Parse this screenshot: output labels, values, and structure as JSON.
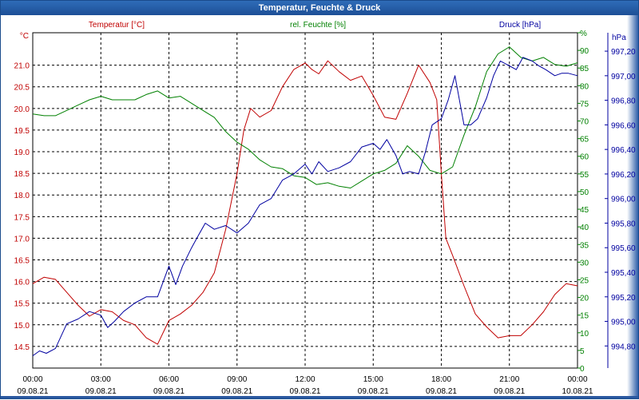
{
  "window": {
    "title": "Temperatur, Feuchte & Druck"
  },
  "chart_data": {
    "type": "line",
    "colors": {
      "temperature": "#c00000",
      "humidity": "#008000",
      "pressure": "#0000a0",
      "grid": "#000000"
    },
    "grid": true,
    "x": {
      "range": [
        0,
        24
      ],
      "ticks": [
        0,
        3,
        6,
        9,
        12,
        15,
        18,
        21,
        24
      ],
      "tick_labels_time": [
        "00:00",
        "03:00",
        "06:00",
        "09:00",
        "12:00",
        "15:00",
        "18:00",
        "21:00",
        "00:00"
      ],
      "tick_labels_date": [
        "09.08.21",
        "09.08.21",
        "09.08.21",
        "09.08.21",
        "09.08.21",
        "09.08.21",
        "09.08.21",
        "09.08.21",
        "10.08.21"
      ]
    },
    "axes": {
      "temperature": {
        "label": "Temperatur [°C]",
        "unit": "°C",
        "ylim": [
          14.0,
          21.75
        ],
        "ticks": [
          "14.5",
          "15.0",
          "15.5",
          "16.0",
          "16.5",
          "17.0",
          "17.5",
          "18.0",
          "18.5",
          "19.0",
          "19.5",
          "20.0",
          "20.5",
          "21.0"
        ]
      },
      "humidity": {
        "label": "rel. Feuchte [%]",
        "unit": "%",
        "ylim": [
          0,
          95
        ],
        "ticks": [
          "0",
          "5",
          "10",
          "15",
          "20",
          "25",
          "30",
          "35",
          "40",
          "45",
          "50",
          "55",
          "60",
          "65",
          "70",
          "75",
          "80",
          "85",
          "90",
          "95"
        ],
        "tick_unit_label": "%"
      },
      "pressure": {
        "label": "Druck [hPa]",
        "unit": "hPa",
        "ylim": [
          994.62,
          997.35
        ],
        "ticks": [
          "994,80",
          "995,00",
          "995,20",
          "995,40",
          "995,60",
          "995,80",
          "996,00",
          "996,20",
          "996,40",
          "996,60",
          "996,80",
          "997,00",
          "997,20"
        ]
      }
    },
    "series": [
      {
        "name": "Temperatur [°C]",
        "axis": "temperature",
        "x": [
          0,
          0.5,
          1,
          1.5,
          2,
          2.5,
          3,
          3.5,
          4,
          4.5,
          5,
          5.5,
          6,
          6.5,
          7,
          7.5,
          8,
          8.5,
          9,
          9.3,
          9.6,
          10,
          10.5,
          11,
          11.5,
          12,
          12.3,
          12.6,
          13,
          13.5,
          14,
          14.5,
          15,
          15.5,
          16,
          16.5,
          17,
          17.5,
          17.8,
          18,
          18.2,
          18.5,
          19,
          19.5,
          20,
          20.5,
          21,
          21.5,
          22,
          22.5,
          23,
          23.5,
          24
        ],
        "values": [
          15.95,
          16.1,
          16.05,
          15.75,
          15.45,
          15.2,
          15.35,
          15.3,
          15.1,
          15.0,
          14.7,
          14.55,
          15.1,
          15.25,
          15.45,
          15.75,
          16.2,
          17.2,
          18.5,
          19.5,
          20.0,
          19.8,
          19.95,
          20.5,
          20.9,
          21.05,
          20.9,
          20.8,
          21.1,
          20.85,
          20.65,
          20.75,
          20.3,
          19.8,
          19.75,
          20.35,
          21.0,
          20.6,
          20.2,
          18.5,
          17.0,
          16.6,
          15.9,
          15.25,
          14.95,
          14.7,
          14.75,
          14.75,
          15.0,
          15.3,
          15.7,
          15.95,
          15.9
        ]
      },
      {
        "name": "rel. Feuchte [%]",
        "axis": "humidity",
        "x": [
          0,
          0.5,
          1,
          1.5,
          2,
          2.5,
          3,
          3.5,
          4,
          4.5,
          5,
          5.5,
          6,
          6.5,
          7,
          7.5,
          8,
          8.5,
          9,
          9.5,
          10,
          10.5,
          11,
          11.5,
          12,
          12.5,
          13,
          13.5,
          14,
          14.5,
          15,
          15.5,
          16,
          16.5,
          17,
          17.5,
          18,
          18.5,
          19,
          19.5,
          20,
          20.5,
          21,
          21.5,
          22,
          22.5,
          23,
          23.5,
          24
        ],
        "values": [
          72,
          71.5,
          71.5,
          73,
          74.5,
          76,
          77,
          76,
          76,
          76,
          77.5,
          78.5,
          76.5,
          77,
          75,
          73,
          71,
          67,
          64,
          62,
          59,
          57,
          56.5,
          54.5,
          54,
          52,
          52.5,
          51.5,
          51,
          53,
          55,
          56,
          58,
          63,
          60,
          56,
          55,
          57,
          66,
          74,
          84,
          89,
          91,
          88,
          87,
          88,
          86,
          85.5,
          86.5
        ]
      },
      {
        "name": "Druck [hPa]",
        "axis": "pressure",
        "x": [
          0,
          0.3,
          0.6,
          1,
          1.5,
          2,
          2.5,
          3,
          3.3,
          3.6,
          4,
          4.5,
          5,
          5.5,
          6,
          6.3,
          6.6,
          7,
          7.3,
          7.6,
          8,
          8.5,
          9,
          9.5,
          10,
          10.5,
          11,
          11.5,
          12,
          12.3,
          12.6,
          13,
          13.5,
          14,
          14.5,
          15,
          15.3,
          15.6,
          16,
          16.3,
          16.6,
          17,
          17.3,
          17.6,
          18,
          18.3,
          18.6,
          19,
          19.3,
          19.6,
          20,
          20.3,
          20.6,
          21,
          21.3,
          21.6,
          22,
          22.3,
          22.6,
          23,
          23.3,
          23.6,
          24
        ],
        "values": [
          994.72,
          994.76,
          994.74,
          994.78,
          994.98,
          995.02,
          995.08,
          995.05,
          994.95,
          995.0,
          995.08,
          995.15,
          995.2,
          995.2,
          995.45,
          995.3,
          995.45,
          995.6,
          995.7,
          995.8,
          995.75,
          995.78,
          995.72,
          995.8,
          995.95,
          996.0,
          996.15,
          996.2,
          996.28,
          996.2,
          996.3,
          996.22,
          996.25,
          996.3,
          996.42,
          996.45,
          996.4,
          996.48,
          996.35,
          996.2,
          996.22,
          996.2,
          996.38,
          996.6,
          996.65,
          996.8,
          997.0,
          996.6,
          996.6,
          996.65,
          996.82,
          997.0,
          997.12,
          997.08,
          997.05,
          997.15,
          997.12,
          997.08,
          997.05,
          997.0,
          997.02,
          997.02,
          997.0
        ]
      }
    ]
  }
}
